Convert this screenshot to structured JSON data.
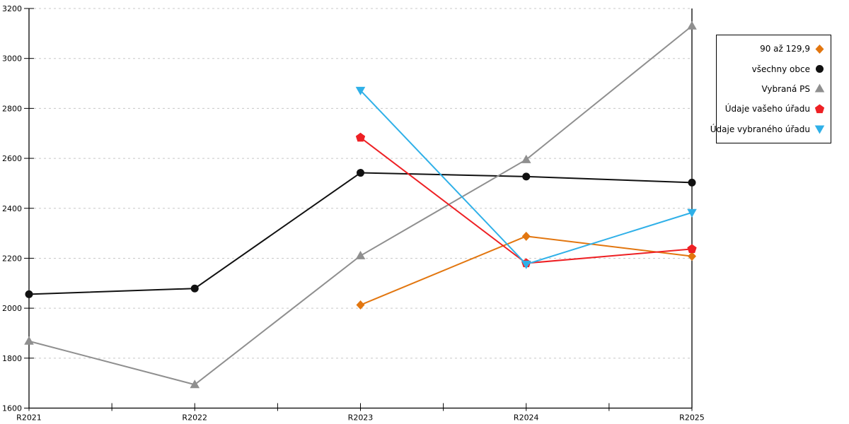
{
  "chart_data": {
    "type": "line",
    "title": "",
    "xlabel": "",
    "ylabel": "",
    "categories": [
      "R2021",
      "R2022",
      "R2023",
      "R2024",
      "R2025"
    ],
    "yticks": [
      1600,
      1800,
      2000,
      2200,
      2400,
      2600,
      2800,
      3000,
      3200
    ],
    "ylim": [
      1600,
      3200
    ],
    "grid": "horizontal-dashed",
    "grid_color": "#c8c8c8",
    "axis_color": "#000000",
    "legend_position": "right-outside",
    "series": [
      {
        "name": "90 až 129,9",
        "color": "#e2760f",
        "marker": "diamond",
        "values": [
          null,
          null,
          2013,
          2288,
          2208
        ]
      },
      {
        "name": "všechny obce",
        "color": "#111111",
        "marker": "circle",
        "values": [
          2056,
          2079,
          2542,
          2527,
          2503
        ]
      },
      {
        "name": "Vybraná PS",
        "color": "#8f8f8f",
        "marker": "triangle-up",
        "values": [
          1868,
          1694,
          2210,
          2595,
          3130
        ]
      },
      {
        "name": "Údaje vašeho úřadu",
        "color": "#ee2024",
        "marker": "pentagon",
        "values": [
          null,
          null,
          2683,
          2180,
          2237
        ]
      },
      {
        "name": "Údaje vybraného úřadu",
        "color": "#2fb0e8",
        "marker": "triangle-down",
        "values": [
          null,
          null,
          2872,
          2176,
          2383
        ]
      }
    ]
  }
}
